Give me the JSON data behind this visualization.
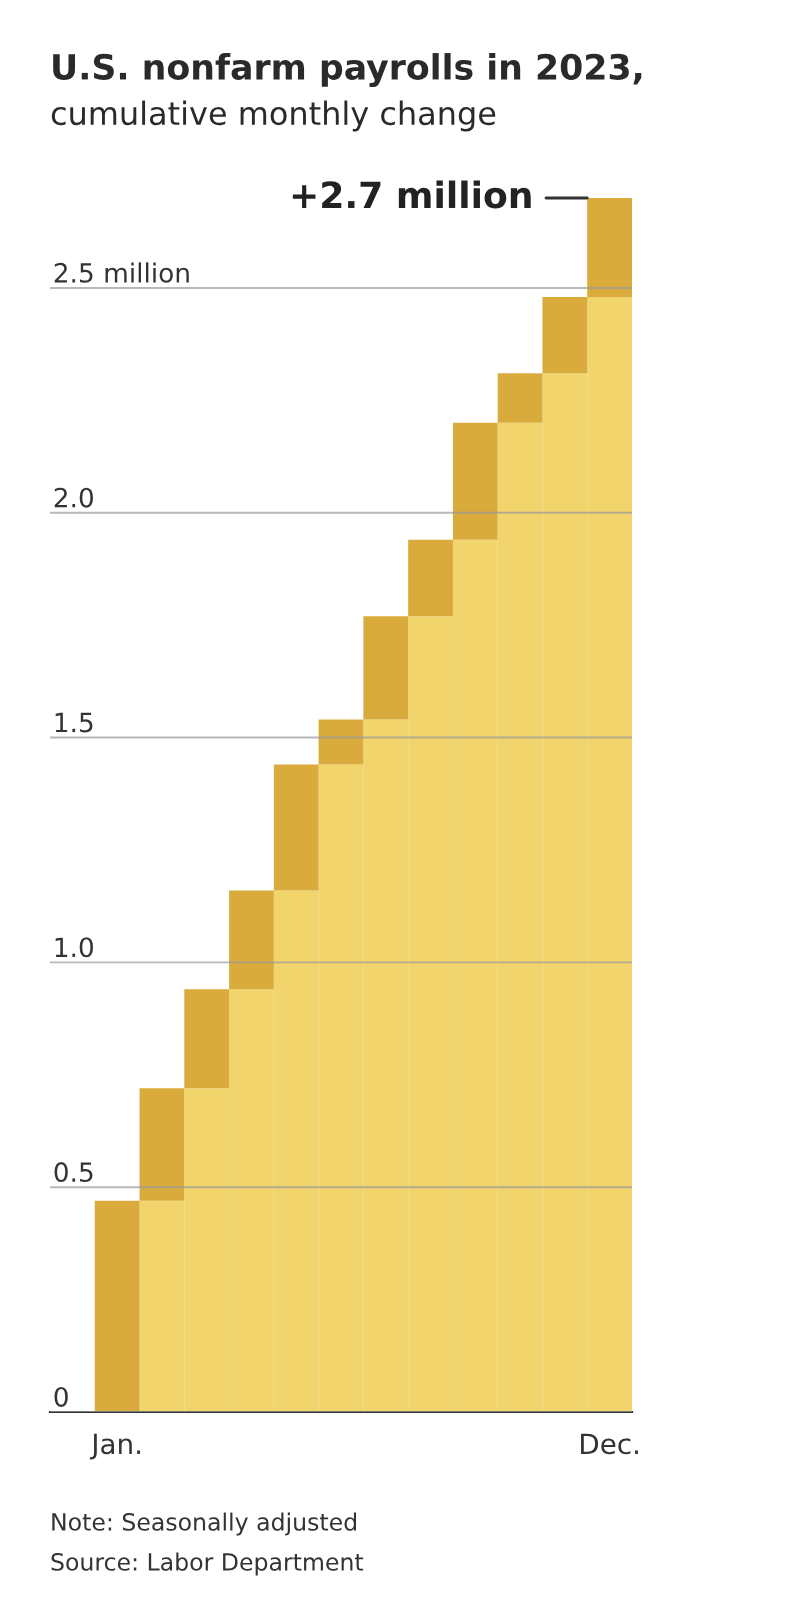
{
  "chart_data": {
    "type": "bar",
    "title": "U.S. nonfarm payrolls in 2023,",
    "subtitle": "cumulative monthly change",
    "categories": [
      "Jan.",
      null,
      null,
      null,
      null,
      null,
      null,
      null,
      null,
      null,
      null,
      "Dec."
    ],
    "stacked": true,
    "series": [
      {
        "color": "#f1d46c",
        "values": [
          0,
          0.47,
          0.72,
          0.94,
          1.16,
          1.44,
          1.54,
          1.77,
          1.94,
          2.2,
          2.31,
          2.48
        ]
      },
      {
        "color": "#d9ab3c",
        "values": [
          0.47,
          0.25,
          0.22,
          0.22,
          0.28,
          0.1,
          0.23,
          0.17,
          0.26,
          0.11,
          0.17,
          0.22
        ]
      }
    ],
    "ylim": [
      0,
      2.7
    ],
    "yticks": [
      0,
      0.5,
      {
        "value": 1,
        "label": "1.0"
      },
      1.5,
      {
        "value": 2,
        "label": "2.0"
      },
      {
        "value": 2.5,
        "label": "2.5 million"
      }
    ],
    "grid": "y",
    "annotations": [
      {
        "text": "+2.7 million",
        "x": "Dec.",
        "y": 2.7
      },
      "Note: Seasonally adjusted",
      "Source: Labor Department"
    ]
  }
}
